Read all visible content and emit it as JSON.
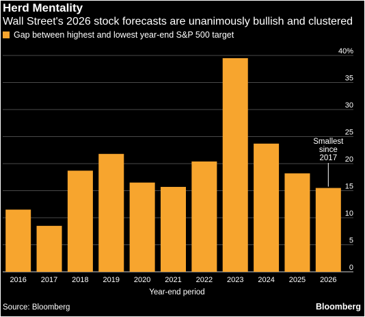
{
  "header": {
    "title": "Herd Mentality",
    "subtitle": "Wall Street's 2026 stock forecasts are unanimously bullish and clustered"
  },
  "footer": {
    "source": "Source: Bloomberg",
    "brand": "Bloomberg"
  },
  "colors": {
    "bar": "#f7a52e",
    "background": "#000000",
    "text": "#ffffff"
  },
  "chart_data": {
    "type": "bar",
    "title": "Herd Mentality",
    "subtitle": "Wall Street's 2026 stock forecasts are unanimously bullish and clustered",
    "xlabel": "Year-end period",
    "ylabel": "",
    "categories": [
      "2016",
      "2017",
      "2018",
      "2019",
      "2020",
      "2021",
      "2022",
      "2023",
      "2024",
      "2025",
      "2026"
    ],
    "series": [
      {
        "name": "Gap between highest and lowest year-end S&P 500 target",
        "values": [
          11.5,
          8.5,
          18.7,
          21.8,
          16.5,
          15.7,
          20.4,
          39.5,
          23.7,
          18.2,
          15.5
        ]
      }
    ],
    "ylim": [
      0,
      40
    ],
    "yticks": [
      0,
      5,
      10,
      15,
      20,
      25,
      30,
      35,
      40
    ],
    "ytick_labels": [
      "0",
      "5",
      "10",
      "15",
      "20",
      "25",
      "30",
      "35",
      "40%"
    ],
    "y_axis_position": "right",
    "grid": true,
    "legend_position": "top-left",
    "annotation": {
      "category": "2026",
      "lines": [
        "Smallest",
        "since",
        "2017"
      ]
    }
  }
}
